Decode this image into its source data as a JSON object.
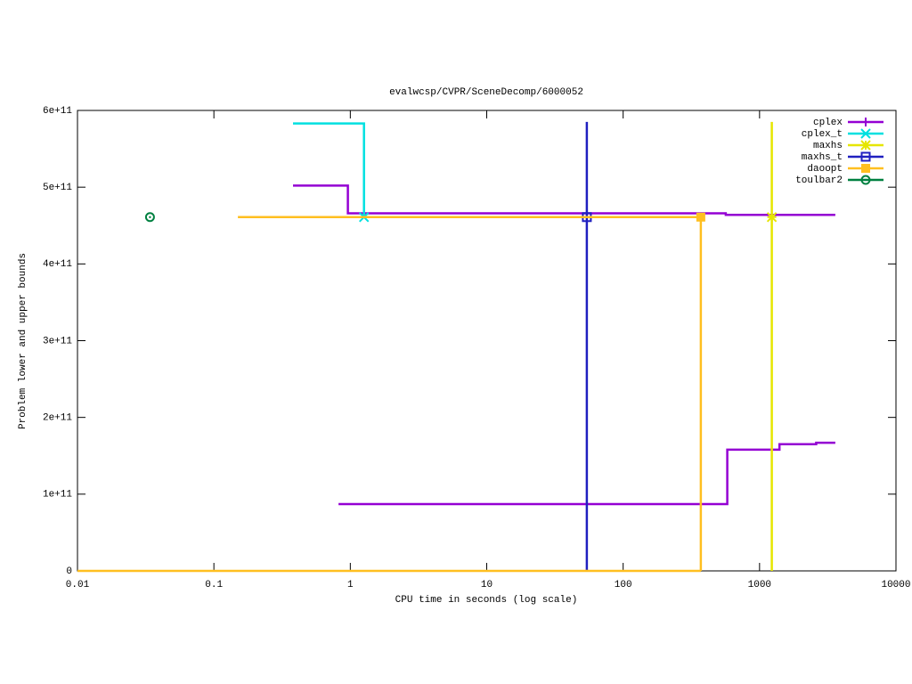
{
  "chart_data": {
    "type": "line",
    "title": "evalwcsp/CVPR/SceneDecomp/6000052",
    "x_label": "CPU time in seconds (log scale)",
    "y_label": "Problem lower and upper bounds",
    "xlog": true,
    "xlim": [
      0.01,
      10000
    ],
    "xticks": [
      0.01,
      0.1,
      1,
      10,
      100,
      1000,
      10000
    ],
    "ylim": [
      0,
      600000000000
    ],
    "yticks": [
      0,
      {
        "value": 100000000000,
        "label": "1e+11"
      },
      {
        "value": 200000000000,
        "label": "2e+11"
      },
      {
        "value": 300000000000,
        "label": "3e+11"
      },
      {
        "value": 400000000000,
        "label": "4e+11"
      },
      {
        "value": 500000000000,
        "label": "5e+11"
      },
      {
        "value": 600000000000,
        "label": "6e+11"
      }
    ],
    "legend": "top-right",
    "series": [
      {
        "name": "cplex",
        "color": "#9400d3",
        "marker": "plus",
        "x": [
          0.38,
          0.96,
          0.96,
          565,
          565,
          3590,
          null,
          0.82,
          580,
          580,
          1400,
          1400,
          2600,
          2600,
          3590
        ],
        "values": [
          502000000000,
          502000000000,
          466000000000,
          466000000000,
          464000000000,
          464000000000,
          null,
          87000000000,
          87000000000,
          158000000000,
          158000000000,
          165000000000,
          165000000000,
          167000000000,
          167000000000
        ],
        "marker_x": [],
        "marker_values": []
      },
      {
        "name": "cplex_t",
        "color": "#00e0e0",
        "marker": "cross",
        "x": [
          0.38,
          1.26,
          1.26
        ],
        "values": [
          583000000000,
          583000000000,
          461000000000
        ],
        "marker_x": [
          1.26
        ],
        "marker_values": [
          461000000000
        ]
      },
      {
        "name": "maxhs",
        "color": "#e6e600",
        "marker": "star",
        "x": [
          1230,
          1230
        ],
        "values": [
          585000000000,
          0
        ],
        "marker_x": [
          1230
        ],
        "marker_values": [
          461000000000
        ]
      },
      {
        "name": "maxhs_t",
        "color": "#2020c0",
        "marker": "open-square",
        "x": [
          54.2,
          54.2
        ],
        "values": [
          0,
          585000000000
        ],
        "marker_x": [
          54.2
        ],
        "marker_values": [
          461000000000
        ]
      },
      {
        "name": "daoopt",
        "color": "#ffbf20",
        "marker": "filled-square",
        "x": [
          0.15,
          371,
          371,
          null,
          0.01,
          371
        ],
        "values": [
          461000000000,
          461000000000,
          0,
          null,
          0,
          0
        ],
        "marker_x": [
          371
        ],
        "marker_values": [
          461000000000
        ]
      },
      {
        "name": "toulbar2",
        "color": "#008040",
        "marker": "dot-circle",
        "x": [],
        "values": [],
        "marker_x": [
          0.034
        ],
        "marker_values": [
          461000000000
        ]
      }
    ]
  }
}
